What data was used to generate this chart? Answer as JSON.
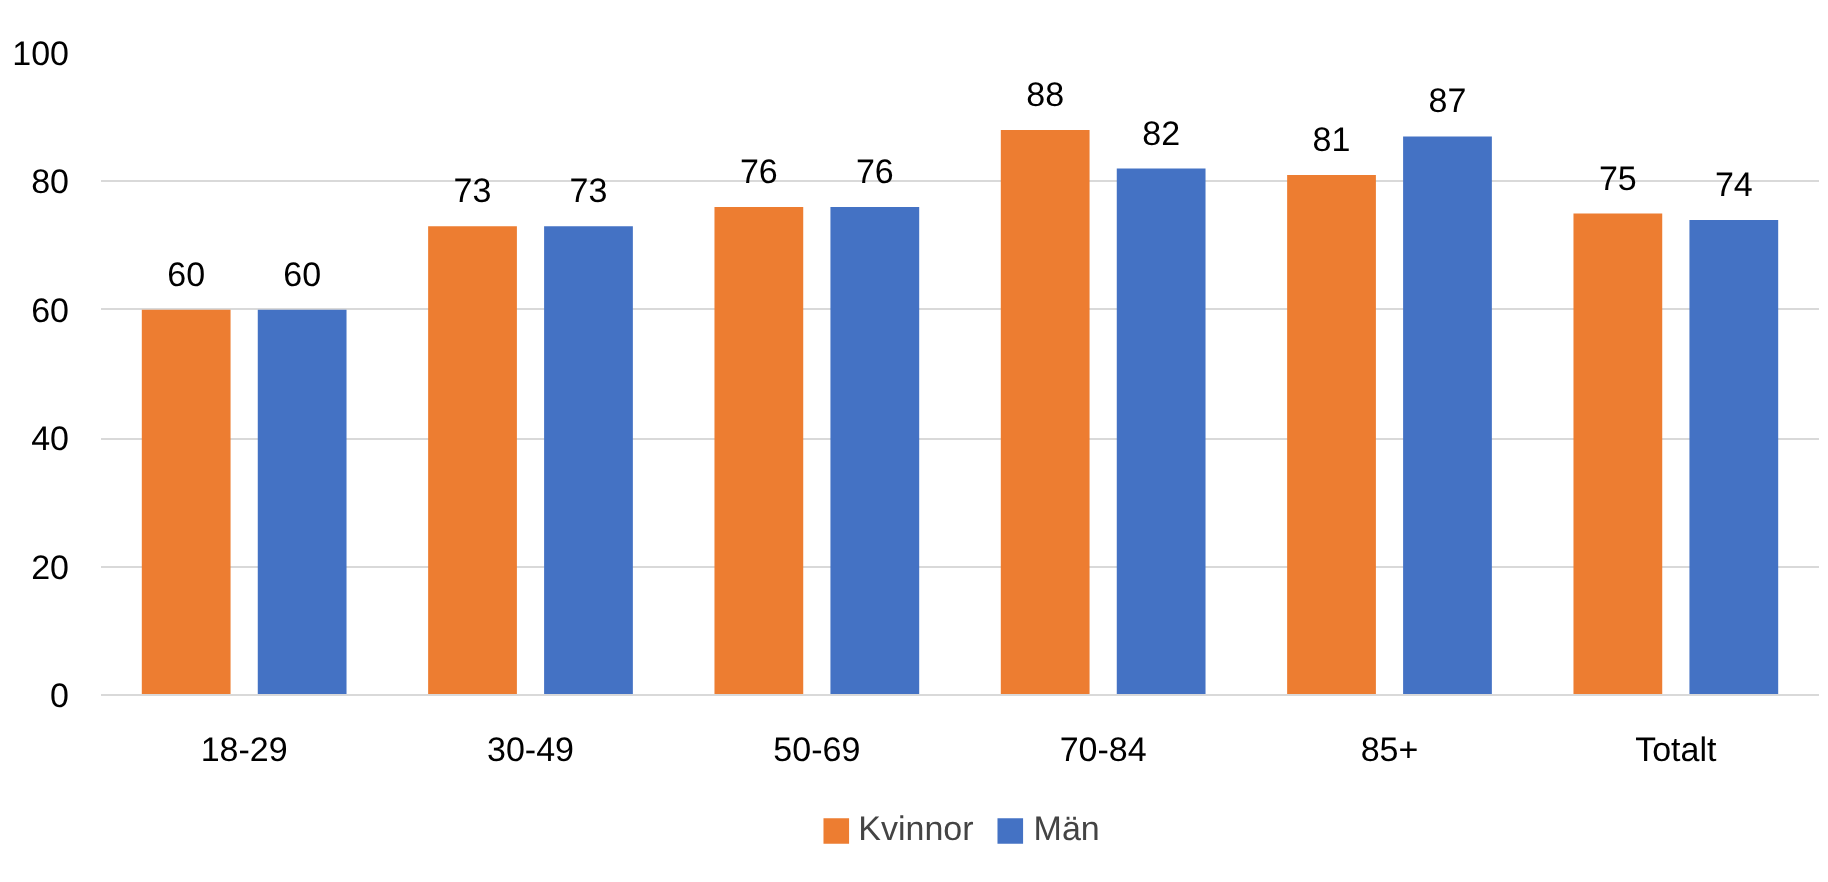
{
  "chart_data": {
    "type": "bar",
    "categories": [
      "18-29",
      "30-49",
      "50-69",
      "70-84",
      "85+",
      "Totalt"
    ],
    "series": [
      {
        "name": "Kvinnor",
        "color": "#ed7d31",
        "values": [
          60,
          73,
          76,
          88,
          81,
          75
        ]
      },
      {
        "name": "Män",
        "color": "#4472c4",
        "values": [
          60,
          73,
          76,
          82,
          87,
          74
        ]
      }
    ],
    "ylim": [
      0,
      100
    ],
    "yticks": [
      0,
      20,
      40,
      60,
      80,
      100
    ],
    "grid": "y",
    "legend": "bottom",
    "data_labels": true
  }
}
